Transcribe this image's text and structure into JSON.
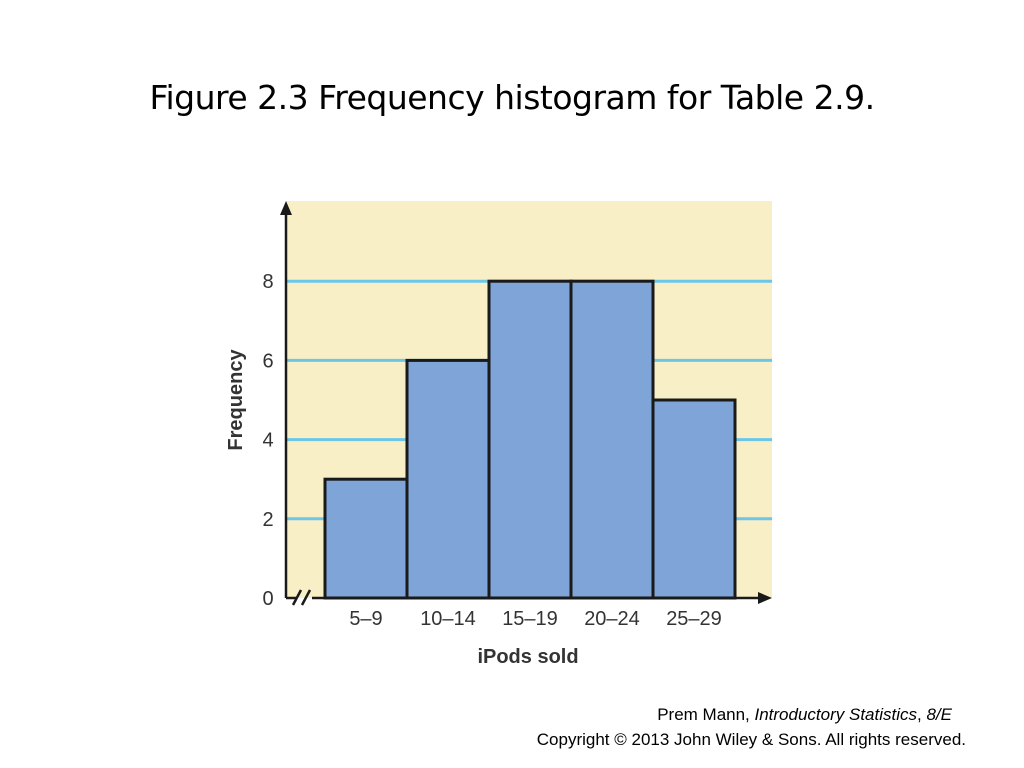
{
  "slide": {
    "title": "Figure 2.3 Frequency histogram for Table 2.9."
  },
  "credit": {
    "author": "Prem Mann, ",
    "book": "Introductory Statistics",
    "sep": ", ",
    "edition": "8/E",
    "copyright": "Copyright © 2013 John Wiley & Sons. All rights reserved."
  },
  "colors": {
    "plot_background": "#f8efc6",
    "bar_fill": "#7ea4d8",
    "bar_stroke": "#1a1a1a",
    "gridline": "#6cc6e8",
    "axis": "#1a1a1a",
    "label": "#333333"
  },
  "chart_data": {
    "type": "bar",
    "categories": [
      "5–9",
      "10–14",
      "15–19",
      "20–24",
      "25–29"
    ],
    "values": [
      3,
      6,
      8,
      8,
      5
    ],
    "xlabel": "iPods sold",
    "ylabel": "Frequency",
    "ylim": [
      0,
      10
    ],
    "yticks": [
      0,
      2,
      4,
      6,
      8
    ],
    "grid": true,
    "axis_break": "//"
  }
}
